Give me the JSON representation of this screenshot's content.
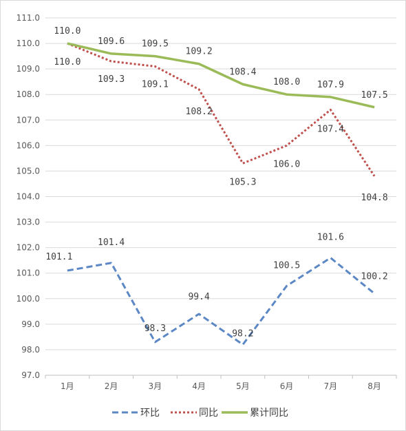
{
  "chart_data": {
    "type": "line",
    "categories": [
      "1月",
      "2月",
      "3月",
      "4月",
      "5月",
      "6月",
      "7月",
      "8月"
    ],
    "ylim": [
      97.0,
      111.0
    ],
    "ytick_step": 1.0,
    "yticks": [
      "97.0",
      "98.0",
      "99.0",
      "100.0",
      "101.0",
      "102.0",
      "103.0",
      "104.0",
      "105.0",
      "106.0",
      "107.0",
      "108.0",
      "109.0",
      "110.0",
      "111.0"
    ],
    "grid": true,
    "legend_position": "bottom",
    "series": [
      {
        "name": "环比",
        "values": [
          101.1,
          101.4,
          98.3,
          99.4,
          98.2,
          100.5,
          101.6,
          100.2
        ],
        "labels": [
          "101.1",
          "101.4",
          "98.3",
          "99.4",
          "98.2",
          "100.5",
          "101.6",
          "100.2"
        ],
        "color": "#5b87c5",
        "style": "dashed"
      },
      {
        "name": "同比",
        "values": [
          110.0,
          109.3,
          109.1,
          108.2,
          105.3,
          106.0,
          107.4,
          104.8
        ],
        "labels": [
          "110.0",
          "109.3",
          "109.1",
          "108.2",
          "105.3",
          "106.0",
          "107.4",
          "104.8"
        ],
        "color": "#c0504d",
        "style": "dotted"
      },
      {
        "name": "累计同比",
        "values": [
          110.0,
          109.6,
          109.5,
          109.2,
          108.4,
          108.0,
          107.9,
          107.5
        ],
        "labels": [
          "110.0",
          "109.6",
          "109.5",
          "109.2",
          "108.4",
          "108.0",
          "107.9",
          "107.5"
        ],
        "color": "#9bbb59",
        "style": "solid"
      }
    ]
  }
}
